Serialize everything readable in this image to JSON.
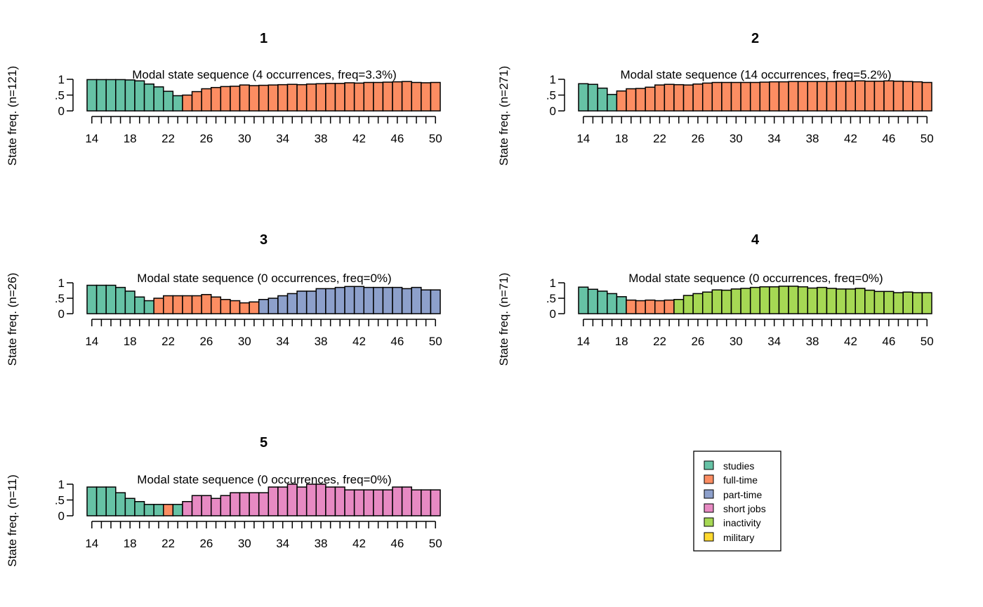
{
  "chart_data": [
    {
      "type": "bar",
      "title": "1",
      "subtitle": "Modal state sequence (4 occurrences, freq=3.3%)",
      "ylabel": "State freq. (n=121)",
      "x": [
        14,
        15,
        16,
        17,
        18,
        19,
        20,
        21,
        22,
        23,
        24,
        25,
        26,
        27,
        28,
        29,
        30,
        31,
        32,
        33,
        34,
        35,
        36,
        37,
        38,
        39,
        40,
        41,
        42,
        43,
        44,
        45,
        46,
        47,
        48,
        49,
        50
      ],
      "xticks": [
        "14",
        "18",
        "22",
        "26",
        "30",
        "34",
        "38",
        "42",
        "46",
        "50"
      ],
      "yticks": [
        "0",
        ".5",
        "1"
      ],
      "ylim": [
        0,
        1
      ],
      "states": [
        "studies",
        "studies",
        "studies",
        "studies",
        "studies",
        "studies",
        "studies",
        "studies",
        "studies",
        "studies",
        "full-time",
        "full-time",
        "full-time",
        "full-time",
        "full-time",
        "full-time",
        "full-time",
        "full-time",
        "full-time",
        "full-time",
        "full-time",
        "full-time",
        "full-time",
        "full-time",
        "full-time",
        "full-time",
        "full-time",
        "full-time",
        "full-time",
        "full-time",
        "full-time",
        "full-time",
        "full-time",
        "full-time",
        "full-time",
        "full-time",
        "full-time"
      ],
      "values": [
        0.99,
        0.99,
        0.99,
        0.99,
        0.98,
        0.95,
        0.85,
        0.76,
        0.62,
        0.48,
        0.5,
        0.61,
        0.7,
        0.74,
        0.77,
        0.78,
        0.82,
        0.8,
        0.81,
        0.82,
        0.83,
        0.84,
        0.83,
        0.85,
        0.86,
        0.87,
        0.87,
        0.89,
        0.88,
        0.9,
        0.9,
        0.91,
        0.92,
        0.93,
        0.9,
        0.89,
        0.9
      ]
    },
    {
      "type": "bar",
      "title": "2",
      "subtitle": "Modal state sequence (14 occurrences, freq=5.2%)",
      "ylabel": "State freq. (n=271)",
      "x": [
        14,
        15,
        16,
        17,
        18,
        19,
        20,
        21,
        22,
        23,
        24,
        25,
        26,
        27,
        28,
        29,
        30,
        31,
        32,
        33,
        34,
        35,
        36,
        37,
        38,
        39,
        40,
        41,
        42,
        43,
        44,
        45,
        46,
        47,
        48,
        49,
        50
      ],
      "xticks": [
        "14",
        "18",
        "22",
        "26",
        "30",
        "34",
        "38",
        "42",
        "46",
        "50"
      ],
      "yticks": [
        "0",
        ".5",
        "1"
      ],
      "ylim": [
        0,
        1
      ],
      "states": [
        "studies",
        "studies",
        "studies",
        "studies",
        "full-time",
        "full-time",
        "full-time",
        "full-time",
        "full-time",
        "full-time",
        "full-time",
        "full-time",
        "full-time",
        "full-time",
        "full-time",
        "full-time",
        "full-time",
        "full-time",
        "full-time",
        "full-time",
        "full-time",
        "full-time",
        "full-time",
        "full-time",
        "full-time",
        "full-time",
        "full-time",
        "full-time",
        "full-time",
        "full-time",
        "full-time",
        "full-time",
        "full-time",
        "full-time",
        "full-time",
        "full-time",
        "full-time"
      ],
      "values": [
        0.86,
        0.84,
        0.72,
        0.52,
        0.63,
        0.7,
        0.71,
        0.75,
        0.82,
        0.84,
        0.83,
        0.82,
        0.85,
        0.88,
        0.9,
        0.9,
        0.9,
        0.9,
        0.9,
        0.91,
        0.92,
        0.92,
        0.93,
        0.93,
        0.93,
        0.93,
        0.93,
        0.94,
        0.94,
        0.95,
        0.94,
        0.94,
        0.95,
        0.94,
        0.93,
        0.92,
        0.9
      ]
    },
    {
      "type": "bar",
      "title": "3",
      "subtitle": "Modal state sequence (0 occurrences, freq=0%)",
      "ylabel": "State freq. (n=26)",
      "x": [
        14,
        15,
        16,
        17,
        18,
        19,
        20,
        21,
        22,
        23,
        24,
        25,
        26,
        27,
        28,
        29,
        30,
        31,
        32,
        33,
        34,
        35,
        36,
        37,
        38,
        39,
        40,
        41,
        42,
        43,
        44,
        45,
        46,
        47,
        48,
        49,
        50
      ],
      "xticks": [
        "14",
        "18",
        "22",
        "26",
        "30",
        "34",
        "38",
        "42",
        "46",
        "50"
      ],
      "yticks": [
        "0",
        ".5",
        "1"
      ],
      "ylim": [
        0,
        1
      ],
      "states": [
        "studies",
        "studies",
        "studies",
        "studies",
        "studies",
        "studies",
        "studies",
        "full-time",
        "full-time",
        "full-time",
        "full-time",
        "full-time",
        "full-time",
        "full-time",
        "full-time",
        "full-time",
        "full-time",
        "full-time",
        "part-time",
        "part-time",
        "part-time",
        "part-time",
        "part-time",
        "part-time",
        "part-time",
        "part-time",
        "part-time",
        "part-time",
        "part-time",
        "part-time",
        "part-time",
        "part-time",
        "part-time",
        "part-time",
        "part-time",
        "part-time",
        "part-time"
      ],
      "values": [
        0.92,
        0.92,
        0.92,
        0.85,
        0.73,
        0.54,
        0.42,
        0.5,
        0.58,
        0.58,
        0.58,
        0.58,
        0.62,
        0.54,
        0.46,
        0.42,
        0.35,
        0.38,
        0.46,
        0.5,
        0.58,
        0.65,
        0.73,
        0.73,
        0.81,
        0.81,
        0.85,
        0.88,
        0.88,
        0.85,
        0.85,
        0.85,
        0.85,
        0.81,
        0.85,
        0.77,
        0.77
      ]
    },
    {
      "type": "bar",
      "title": "4",
      "subtitle": "Modal state sequence (0 occurrences, freq=0%)",
      "ylabel": "State freq. (n=71)",
      "x": [
        14,
        15,
        16,
        17,
        18,
        19,
        20,
        21,
        22,
        23,
        24,
        25,
        26,
        27,
        28,
        29,
        30,
        31,
        32,
        33,
        34,
        35,
        36,
        37,
        38,
        39,
        40,
        41,
        42,
        43,
        44,
        45,
        46,
        47,
        48,
        49,
        50
      ],
      "xticks": [
        "14",
        "18",
        "22",
        "26",
        "30",
        "34",
        "38",
        "42",
        "46",
        "50"
      ],
      "yticks": [
        "0",
        ".5",
        "1"
      ],
      "ylim": [
        0,
        1
      ],
      "states": [
        "studies",
        "studies",
        "studies",
        "studies",
        "studies",
        "full-time",
        "full-time",
        "full-time",
        "full-time",
        "full-time",
        "inactivity",
        "inactivity",
        "inactivity",
        "inactivity",
        "inactivity",
        "inactivity",
        "inactivity",
        "inactivity",
        "inactivity",
        "inactivity",
        "inactivity",
        "inactivity",
        "inactivity",
        "inactivity",
        "inactivity",
        "inactivity",
        "inactivity",
        "inactivity",
        "inactivity",
        "inactivity",
        "inactivity",
        "inactivity",
        "inactivity",
        "inactivity",
        "inactivity",
        "inactivity",
        "inactivity"
      ],
      "values": [
        0.86,
        0.79,
        0.73,
        0.65,
        0.55,
        0.44,
        0.42,
        0.44,
        0.42,
        0.44,
        0.46,
        0.59,
        0.65,
        0.7,
        0.77,
        0.76,
        0.8,
        0.82,
        0.85,
        0.87,
        0.87,
        0.89,
        0.89,
        0.87,
        0.83,
        0.85,
        0.82,
        0.8,
        0.8,
        0.82,
        0.76,
        0.72,
        0.72,
        0.68,
        0.7,
        0.68,
        0.68
      ]
    },
    {
      "type": "bar",
      "title": "5",
      "subtitle": "Modal state sequence (0 occurrences, freq=0%)",
      "ylabel": "State freq. (n=11)",
      "x": [
        14,
        15,
        16,
        17,
        18,
        19,
        20,
        21,
        22,
        23,
        24,
        25,
        26,
        27,
        28,
        29,
        30,
        31,
        32,
        33,
        34,
        35,
        36,
        37,
        38,
        39,
        40,
        41,
        42,
        43,
        44,
        45,
        46,
        47,
        48,
        49,
        50
      ],
      "xticks": [
        "14",
        "18",
        "22",
        "26",
        "30",
        "34",
        "38",
        "42",
        "46",
        "50"
      ],
      "yticks": [
        "0",
        ".5",
        "1"
      ],
      "ylim": [
        0,
        1
      ],
      "states": [
        "studies",
        "studies",
        "studies",
        "studies",
        "studies",
        "studies",
        "studies",
        "studies",
        "full-time",
        "studies",
        "short jobs",
        "short jobs",
        "short jobs",
        "short jobs",
        "short jobs",
        "short jobs",
        "short jobs",
        "short jobs",
        "short jobs",
        "short jobs",
        "short jobs",
        "short jobs",
        "short jobs",
        "short jobs",
        "short jobs",
        "short jobs",
        "short jobs",
        "short jobs",
        "short jobs",
        "short jobs",
        "short jobs",
        "short jobs",
        "short jobs",
        "short jobs",
        "short jobs",
        "short jobs",
        "short jobs"
      ],
      "values": [
        0.91,
        0.91,
        0.91,
        0.73,
        0.55,
        0.45,
        0.36,
        0.36,
        0.36,
        0.36,
        0.45,
        0.64,
        0.64,
        0.55,
        0.64,
        0.73,
        0.73,
        0.73,
        0.73,
        0.91,
        0.91,
        1.0,
        0.91,
        1.0,
        1.0,
        0.91,
        0.91,
        0.82,
        0.82,
        0.82,
        0.82,
        0.82,
        0.91,
        0.91,
        0.82,
        0.82,
        0.82
      ]
    }
  ],
  "legend": {
    "items": [
      {
        "label": "studies",
        "color": "#66c2a5"
      },
      {
        "label": "full-time",
        "color": "#fc8d62"
      },
      {
        "label": "part-time",
        "color": "#8da0cb"
      },
      {
        "label": "short jobs",
        "color": "#e78ac3"
      },
      {
        "label": "inactivity",
        "color": "#a6d854"
      },
      {
        "label": "military",
        "color": "#ffd92f"
      }
    ]
  }
}
